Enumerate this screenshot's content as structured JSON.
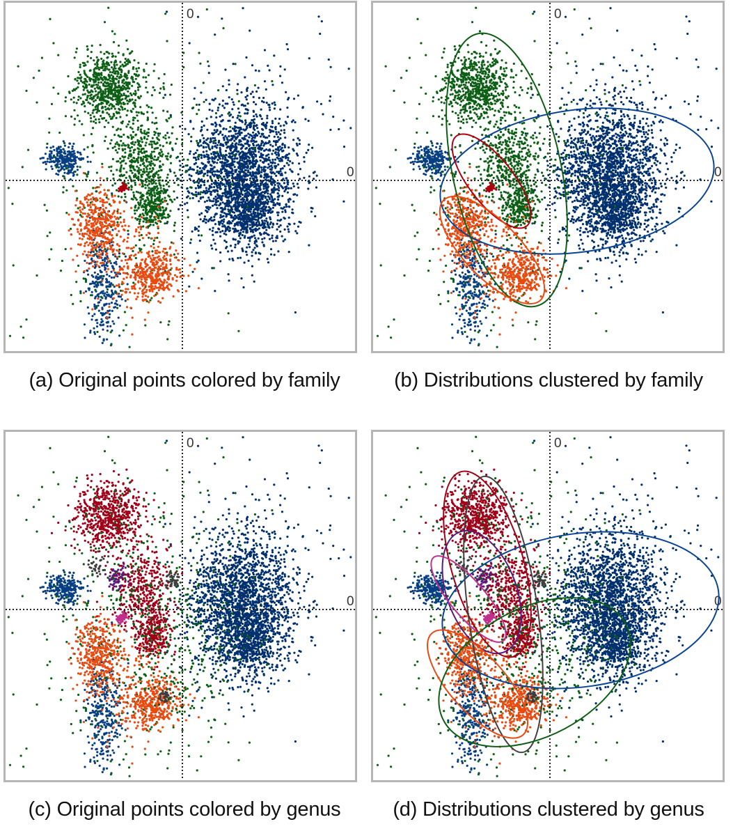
{
  "captions": {
    "a": "(a) Original points colored by family",
    "b": "(b) Distributions clustered by family",
    "c": "(c) Original points colored by genus",
    "d": "(d) Distributions clustered by genus"
  },
  "chart_data": [
    {
      "type": "scatter",
      "panel": "a",
      "title": "",
      "axis_tick_labels": {
        "x": "0",
        "y": "0"
      },
      "grid": false,
      "coloring": "family",
      "point_groups": [
        {
          "color": "#00306e",
          "note": "large right cluster"
        },
        {
          "color": "#0c5f14"
        },
        {
          "color": "#e84a10"
        },
        {
          "color": "#b00010"
        }
      ]
    },
    {
      "type": "scatter",
      "panel": "b",
      "title": "",
      "axis_tick_labels": {
        "x": "0",
        "y": "0"
      },
      "grid": false,
      "coloring": "family",
      "ellipses": [
        {
          "color": "#0a4494"
        },
        {
          "color": "#0c5f14"
        },
        {
          "color": "#b00010"
        },
        {
          "color": "#e84a10"
        }
      ]
    },
    {
      "type": "scatter",
      "panel": "c",
      "title": "",
      "axis_tick_labels": {
        "x": "0",
        "y": "0"
      },
      "grid": false,
      "coloring": "genus",
      "point_groups": [
        {
          "color": "#00306e"
        },
        {
          "color": "#a00018"
        },
        {
          "color": "#e84a10"
        },
        {
          "color": "#0c5f14"
        },
        {
          "color": "#3d3d3d"
        },
        {
          "color": "#5a1a7a"
        },
        {
          "color": "#c0308c"
        }
      ]
    },
    {
      "type": "scatter",
      "panel": "d",
      "title": "",
      "axis_tick_labels": {
        "x": "0",
        "y": "0"
      },
      "grid": false,
      "coloring": "genus",
      "ellipses": [
        {
          "color": "#0a4494"
        },
        {
          "color": "#a00018"
        },
        {
          "color": "#404040"
        },
        {
          "color": "#5a1a7a"
        },
        {
          "color": "#c0308c"
        },
        {
          "color": "#e84a10"
        },
        {
          "color": "#0c5f14"
        }
      ]
    }
  ]
}
